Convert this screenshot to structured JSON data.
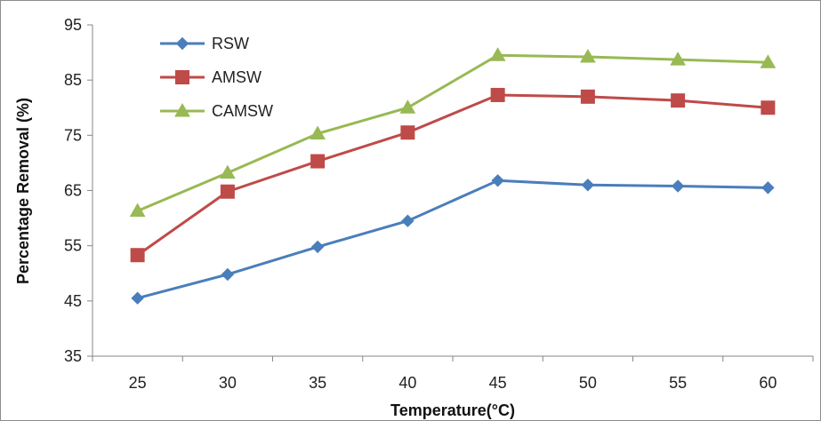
{
  "chart_data": {
    "type": "line",
    "title": "",
    "xlabel": "Temperature(°C)",
    "ylabel": "Percentage Removal (%)",
    "categories": [
      25,
      30,
      35,
      40,
      45,
      50,
      55,
      60
    ],
    "yticks": [
      35,
      45,
      55,
      65,
      75,
      85,
      95
    ],
    "ylim": [
      35,
      95
    ],
    "grid": false,
    "legend_position": "top-left",
    "series": [
      {
        "name": "RSW",
        "color": "#4a7ebb",
        "marker": "diamond",
        "values": [
          45.5,
          49.8,
          54.8,
          59.5,
          66.8,
          66.0,
          65.8,
          65.5
        ]
      },
      {
        "name": "AMSW",
        "color": "#be4b48",
        "marker": "square",
        "values": [
          53.3,
          64.8,
          70.3,
          75.5,
          82.3,
          82.0,
          81.3,
          80.0
        ]
      },
      {
        "name": "CAMSW",
        "color": "#98b954",
        "marker": "triangle",
        "values": [
          61.3,
          68.2,
          75.3,
          80.0,
          89.5,
          89.2,
          88.7,
          88.2
        ]
      }
    ]
  }
}
